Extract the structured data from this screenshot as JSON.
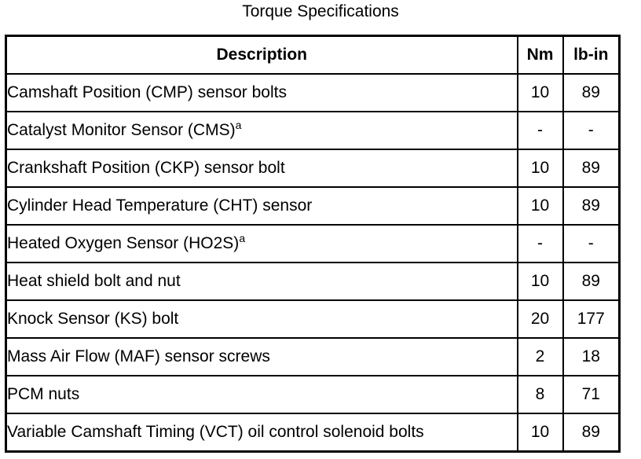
{
  "title": "Torque Specifications",
  "table": {
    "columns": {
      "description": "Description",
      "nm": "Nm",
      "lb_in": "lb-in"
    },
    "rows": [
      {
        "description": "Camshaft Position (CMP) sensor bolts",
        "sup": "",
        "nm": "10",
        "lb_in": "89"
      },
      {
        "description": "Catalyst Monitor Sensor (CMS)",
        "sup": "a",
        "nm": "-",
        "lb_in": "-"
      },
      {
        "description": "Crankshaft Position (CKP) sensor bolt",
        "sup": "",
        "nm": "10",
        "lb_in": "89"
      },
      {
        "description": "Cylinder Head Temperature (CHT) sensor",
        "sup": "",
        "nm": "10",
        "lb_in": "89"
      },
      {
        "description": "Heated Oxygen Sensor (HO2S)",
        "sup": "a",
        "nm": "-",
        "lb_in": "-"
      },
      {
        "description": "Heat shield bolt and nut",
        "sup": "",
        "nm": "10",
        "lb_in": "89"
      },
      {
        "description": "Knock Sensor (KS) bolt",
        "sup": "",
        "nm": "20",
        "lb_in": "177"
      },
      {
        "description": "Mass Air Flow (MAF) sensor screws",
        "sup": "",
        "nm": "2",
        "lb_in": "18"
      },
      {
        "description": "PCM nuts",
        "sup": "",
        "nm": "8",
        "lb_in": "71"
      },
      {
        "description": "Variable Camshaft Timing (VCT) oil control solenoid bolts",
        "sup": "",
        "nm": "10",
        "lb_in": "89"
      }
    ]
  },
  "colors": {
    "text": "#000000",
    "background": "#ffffff",
    "border": "#000000"
  }
}
